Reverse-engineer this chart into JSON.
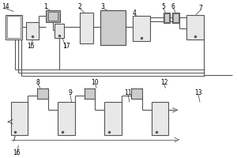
{
  "lc": "#555555",
  "lc2": "#888888",
  "fc_light": "#e8e8e8",
  "fc_mid": "#cccccc",
  "fc_dark": "#aaaaaa",
  "fs": 5.5,
  "lw": 0.8
}
